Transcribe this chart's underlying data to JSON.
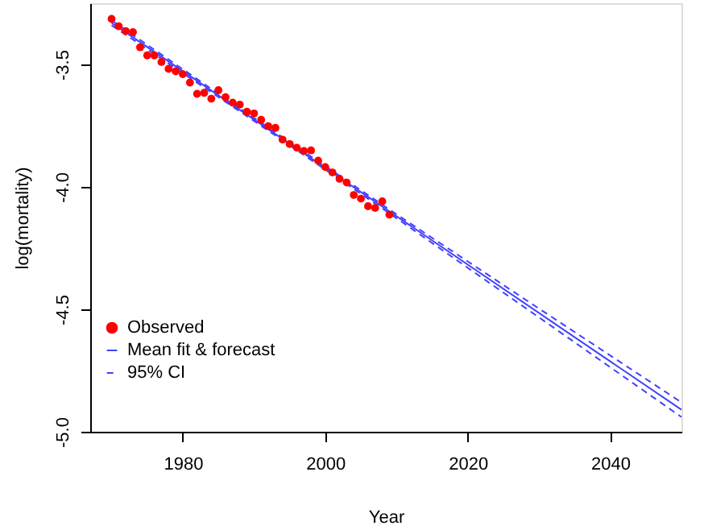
{
  "chart_data": {
    "type": "scatter",
    "xlabel": "Year",
    "ylabel": "log(mortality)",
    "xlim": [
      1967,
      2050
    ],
    "ylim": [
      -5.0,
      -3.25
    ],
    "xticks": [
      1980,
      2000,
      2020,
      2040
    ],
    "yticks": [
      {
        "value": -3.5,
        "label": "-3.5"
      },
      {
        "value": -4.0,
        "label": "-4.0"
      },
      {
        "value": -4.5,
        "label": "-4.5"
      },
      {
        "value": -5.0,
        "label": "-5.0"
      }
    ],
    "grid": false,
    "legend": "bottom left",
    "series": [
      {
        "name": "Observed",
        "marker": "circle",
        "color": "#ff0000",
        "x": [
          1970,
          1971,
          1972,
          1973,
          1974,
          1975,
          1976,
          1977,
          1978,
          1979,
          1980,
          1981,
          1982,
          1983,
          1984,
          1985,
          1986,
          1987,
          1988,
          1989,
          1990,
          1991,
          1992,
          1993,
          1994,
          1995,
          1996,
          1997,
          1998,
          1999,
          2000,
          2001,
          2002,
          2003,
          2004,
          2005,
          2006,
          2007,
          2008,
          2009
        ],
        "values": [
          -3.314,
          -3.344,
          -3.364,
          -3.368,
          -3.43,
          -3.463,
          -3.463,
          -3.49,
          -3.518,
          -3.528,
          -3.54,
          -3.574,
          -3.62,
          -3.616,
          -3.64,
          -3.605,
          -3.634,
          -3.656,
          -3.664,
          -3.693,
          -3.7,
          -3.726,
          -3.752,
          -3.759,
          -3.807,
          -3.825,
          -3.84,
          -3.853,
          -3.851,
          -3.893,
          -3.919,
          -3.941,
          -3.967,
          -3.982,
          -4.033,
          -4.048,
          -4.079,
          -4.086,
          -4.059,
          -4.114
        ]
      },
      {
        "name": "Mean fit & forecast",
        "type": "line",
        "line_style": "solid",
        "color": "#4040ff",
        "x": [
          1970,
          2050
        ],
        "values": [
          -3.33,
          -4.91
        ]
      },
      {
        "name": "95% CI",
        "type": "line",
        "line_style": "dashed",
        "color": "#4040ff",
        "x": [
          1970,
          1990,
          2010,
          2030,
          2050
        ],
        "values": [
          -3.34,
          -3.731,
          -4.128,
          -4.533,
          -4.94
        ]
      },
      {
        "type": "line",
        "line_style": "dashed",
        "color": "#4040ff",
        "x": [
          1970,
          1990,
          2010,
          2030,
          2050
        ],
        "values": [
          -3.32,
          -3.719,
          -4.112,
          -4.497,
          -4.88
        ]
      }
    ]
  }
}
